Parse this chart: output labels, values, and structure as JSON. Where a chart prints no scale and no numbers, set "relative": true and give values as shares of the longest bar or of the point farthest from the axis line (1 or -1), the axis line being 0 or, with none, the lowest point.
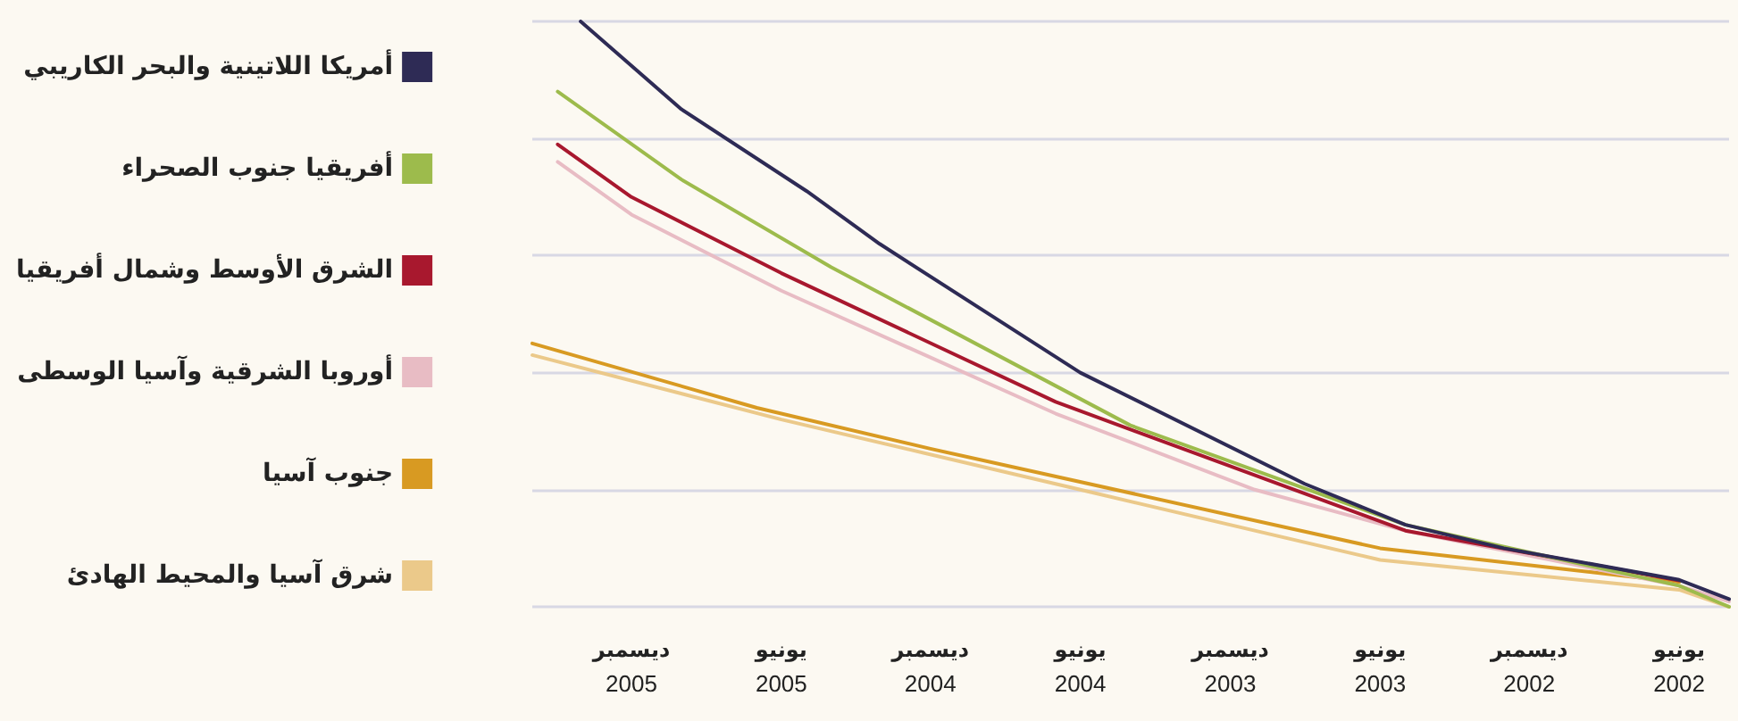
{
  "chart_data": {
    "type": "line",
    "relative": true,
    "grid": "y",
    "legend": "left",
    "marker": "none",
    "line_style": "solid",
    "xlim": [
      "2006-04",
      "2002-04"
    ],
    "xticks": [
      {
        "value": "2005-12",
        "label": "ديسمبر\n2005"
      },
      {
        "value": "2005-06",
        "label": "يونيو\n2005"
      },
      {
        "value": "2004-12",
        "label": "ديسمبر\n2004"
      },
      {
        "value": "2004-06",
        "label": "يونيو\n2004"
      },
      {
        "value": "2003-12",
        "label": "ديسمبر\n2003"
      },
      {
        "value": "2003-06",
        "label": "يونيو\n2003"
      },
      {
        "value": "2002-12",
        "label": "ديسمبر\n2002"
      },
      {
        "value": "2002-06",
        "label": "يونيو\n2002"
      }
    ],
    "series": [
      {
        "name": "أمريكا اللاتينية والبحر الكاريبي",
        "color": "#2e2b55",
        "x": [
          "2006-02",
          "2005-10",
          "2005-05",
          "2005-02",
          "2004-06",
          "2003-09",
          "2003-05",
          "2003-01",
          "2002-06",
          "2002-04"
        ],
        "values": [
          1,
          0.85,
          0.71,
          0.62,
          0.4,
          0.21,
          0.14,
          0.1,
          0.046,
          0.013
        ]
      },
      {
        "name": "أفريقيا جنوب الصحراء",
        "color": "#9dbb4c",
        "x": [
          "2006-03",
          "2005-10",
          "2005-04",
          "2004-04",
          "2003-05",
          "2002-06",
          "2002-04"
        ],
        "values": [
          0.88,
          0.73,
          0.58,
          0.31,
          0.14,
          0.036,
          0
        ]
      },
      {
        "name": "الشرق الأوسط وشمال أفريقيا",
        "color": "#a8182e",
        "x": [
          "2006-03",
          "2005-12",
          "2005-06",
          "2004-07",
          "2003-05",
          "2002-06"
        ],
        "values": [
          0.79,
          0.7,
          0.57,
          0.35,
          0.13,
          0.045
        ]
      },
      {
        "name": "أوروبا الشرقية وآسيا الوسطى",
        "color": "#e8bcc4",
        "x": [
          "2006-03",
          "2005-12",
          "2005-06",
          "2004-07",
          "2003-11",
          "2003-05",
          "2002-06",
          "2002-04"
        ],
        "values": [
          0.76,
          0.67,
          0.54,
          0.33,
          0.2,
          0.13,
          0.036,
          0.009
        ]
      },
      {
        "name": "جنوب آسيا",
        "color": "#d89a22",
        "x": [
          "2006-04",
          "2005-07",
          "2004-12",
          "2003-06",
          "2002-06"
        ],
        "values": [
          0.45,
          0.34,
          0.27,
          0.1,
          0.042
        ]
      },
      {
        "name": "شرق آسيا والمحيط الهادئ",
        "color": "#ebc98a",
        "x": [
          "2006-04",
          "2005-06",
          "2004-06",
          "2003-06",
          "2002-06",
          "2002-04"
        ],
        "values": [
          0.43,
          0.32,
          0.2,
          0.08,
          0.029,
          0
        ]
      }
    ]
  }
}
